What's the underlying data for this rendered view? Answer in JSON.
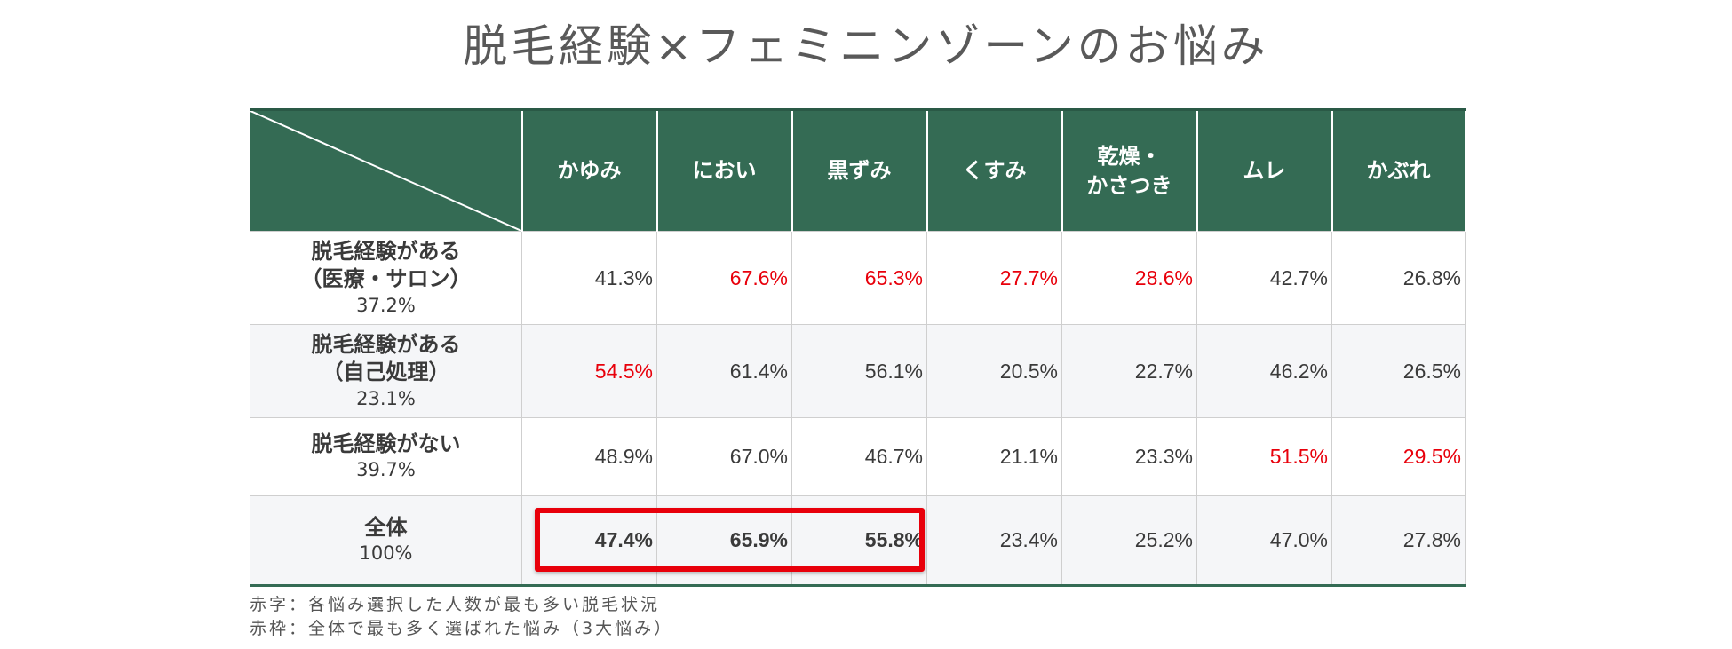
{
  "title": "脱毛経験×フェミニンゾーンのお悩み",
  "chart_data": {
    "type": "table",
    "columns": [
      "かゆみ",
      "におい",
      "黒ずみ",
      "くすみ",
      "乾燥・\nかさつき",
      "ムレ",
      "かぶれ"
    ],
    "rows": [
      {
        "label_lines": [
          "脱毛経験がある",
          "（医療・サロン）"
        ],
        "share": "37.2%",
        "values": [
          "41.3%",
          "67.6%",
          "65.3%",
          "27.7%",
          "28.6%",
          "42.7%",
          "26.8%"
        ],
        "highlight_red": [
          false,
          true,
          true,
          true,
          true,
          false,
          false
        ]
      },
      {
        "label_lines": [
          "脱毛経験がある",
          "（自己処理）"
        ],
        "share": "23.1%",
        "values": [
          "54.5%",
          "61.4%",
          "56.1%",
          "20.5%",
          "22.7%",
          "46.2%",
          "26.5%"
        ],
        "highlight_red": [
          true,
          false,
          false,
          false,
          false,
          false,
          false
        ]
      },
      {
        "label_lines": [
          "脱毛経験がない"
        ],
        "share": "39.7%",
        "values": [
          "48.9%",
          "67.0%",
          "46.7%",
          "21.1%",
          "23.3%",
          "51.5%",
          "29.5%"
        ],
        "highlight_red": [
          false,
          false,
          false,
          false,
          false,
          true,
          true
        ]
      },
      {
        "label_lines": [
          "全体"
        ],
        "share": "100%",
        "values": [
          "47.4%",
          "65.9%",
          "55.8%",
          "23.4%",
          "25.2%",
          "47.0%",
          "27.8%"
        ],
        "highlight_red": [
          false,
          false,
          false,
          false,
          false,
          false,
          false
        ],
        "boxed": [
          true,
          true,
          true,
          false,
          false,
          false,
          false
        ]
      }
    ]
  },
  "colors": {
    "header_bg": "#346b54",
    "highlight_red": "#e8000b"
  },
  "notes": [
    "赤字：各悩み選択した人数が最も多い脱毛状況",
    "赤枠：全体で最も多く選ばれた悩み（3大悩み）"
  ]
}
